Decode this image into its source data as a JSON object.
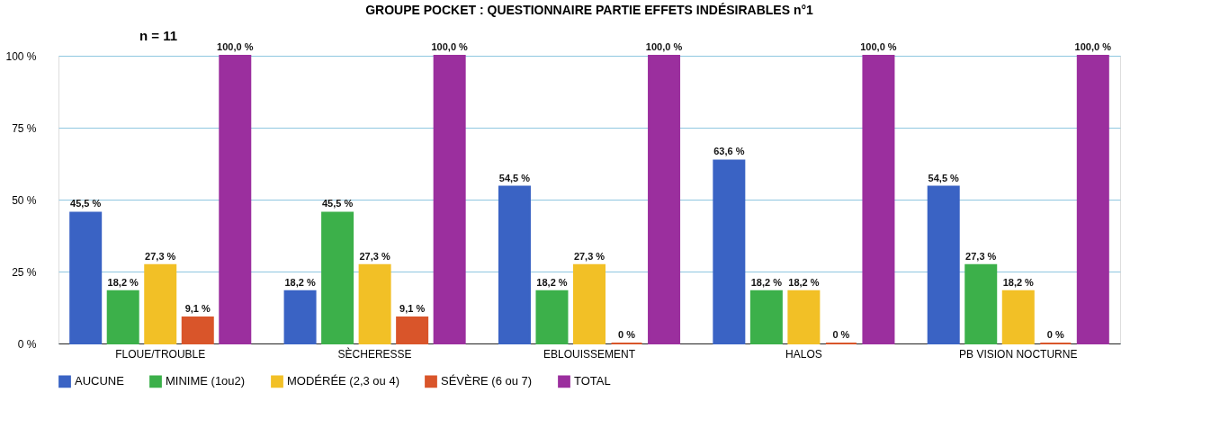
{
  "chart_data": {
    "type": "bar",
    "title": "GROUPE POCKET : QUESTIONNAIRE PARTIE EFFETS INDÉSIRABLES n°1",
    "annotations": [
      "n = 11"
    ],
    "categories": [
      "FLOUE/TROUBLE",
      "SÈCHERESSE",
      "EBLOUISSEMENT",
      "HALOS",
      "PB VISION NOCTURNE"
    ],
    "series": [
      {
        "name": "AUCUNE",
        "color": "#3a63c4",
        "values": [
          45.5,
          18.2,
          54.5,
          63.6,
          54.5
        ],
        "value_labels": [
          "45,5 %",
          "18,2 %",
          "54,5 %",
          "63,6 %",
          "54,5 %"
        ]
      },
      {
        "name": "MINIME (1ou2)",
        "color": "#3cb04a",
        "values": [
          18.2,
          45.5,
          18.2,
          18.2,
          27.3
        ],
        "value_labels": [
          "18,2 %",
          "45,5 %",
          "18,2 %",
          "18,2 %",
          "27,3 %"
        ]
      },
      {
        "name": "MODÉRÉE (2,3 ou 4)",
        "color": "#f2c026",
        "values": [
          27.3,
          27.3,
          27.3,
          18.2,
          18.2
        ],
        "value_labels": [
          "27,3 %",
          "27,3 %",
          "27,3 %",
          "18,2 %",
          "18,2 %"
        ]
      },
      {
        "name": "SÉVÈRE (6 ou 7)",
        "color": "#d9552a",
        "values": [
          9.1,
          9.1,
          0,
          0,
          0
        ],
        "value_labels": [
          "9,1 %",
          "9,1 %",
          "0 %",
          "0 %",
          "0 %"
        ]
      },
      {
        "name": "TOTAL",
        "color": "#9b2f9e",
        "values": [
          100,
          100,
          100,
          100,
          100
        ],
        "value_labels": [
          "100,0 %",
          "100,0 %",
          "100,0 %",
          "100,0 %",
          "100,0 %"
        ]
      }
    ],
    "ylim": [
      0,
      100
    ],
    "yticks": [
      {
        "value": 0,
        "label": "0 %"
      },
      {
        "value": 25,
        "label": "25 %"
      },
      {
        "value": 50,
        "label": "50 %"
      },
      {
        "value": 75,
        "label": "75 %"
      },
      {
        "value": 100,
        "label": "100 %"
      }
    ],
    "grid": "y",
    "legend": "bottom"
  }
}
